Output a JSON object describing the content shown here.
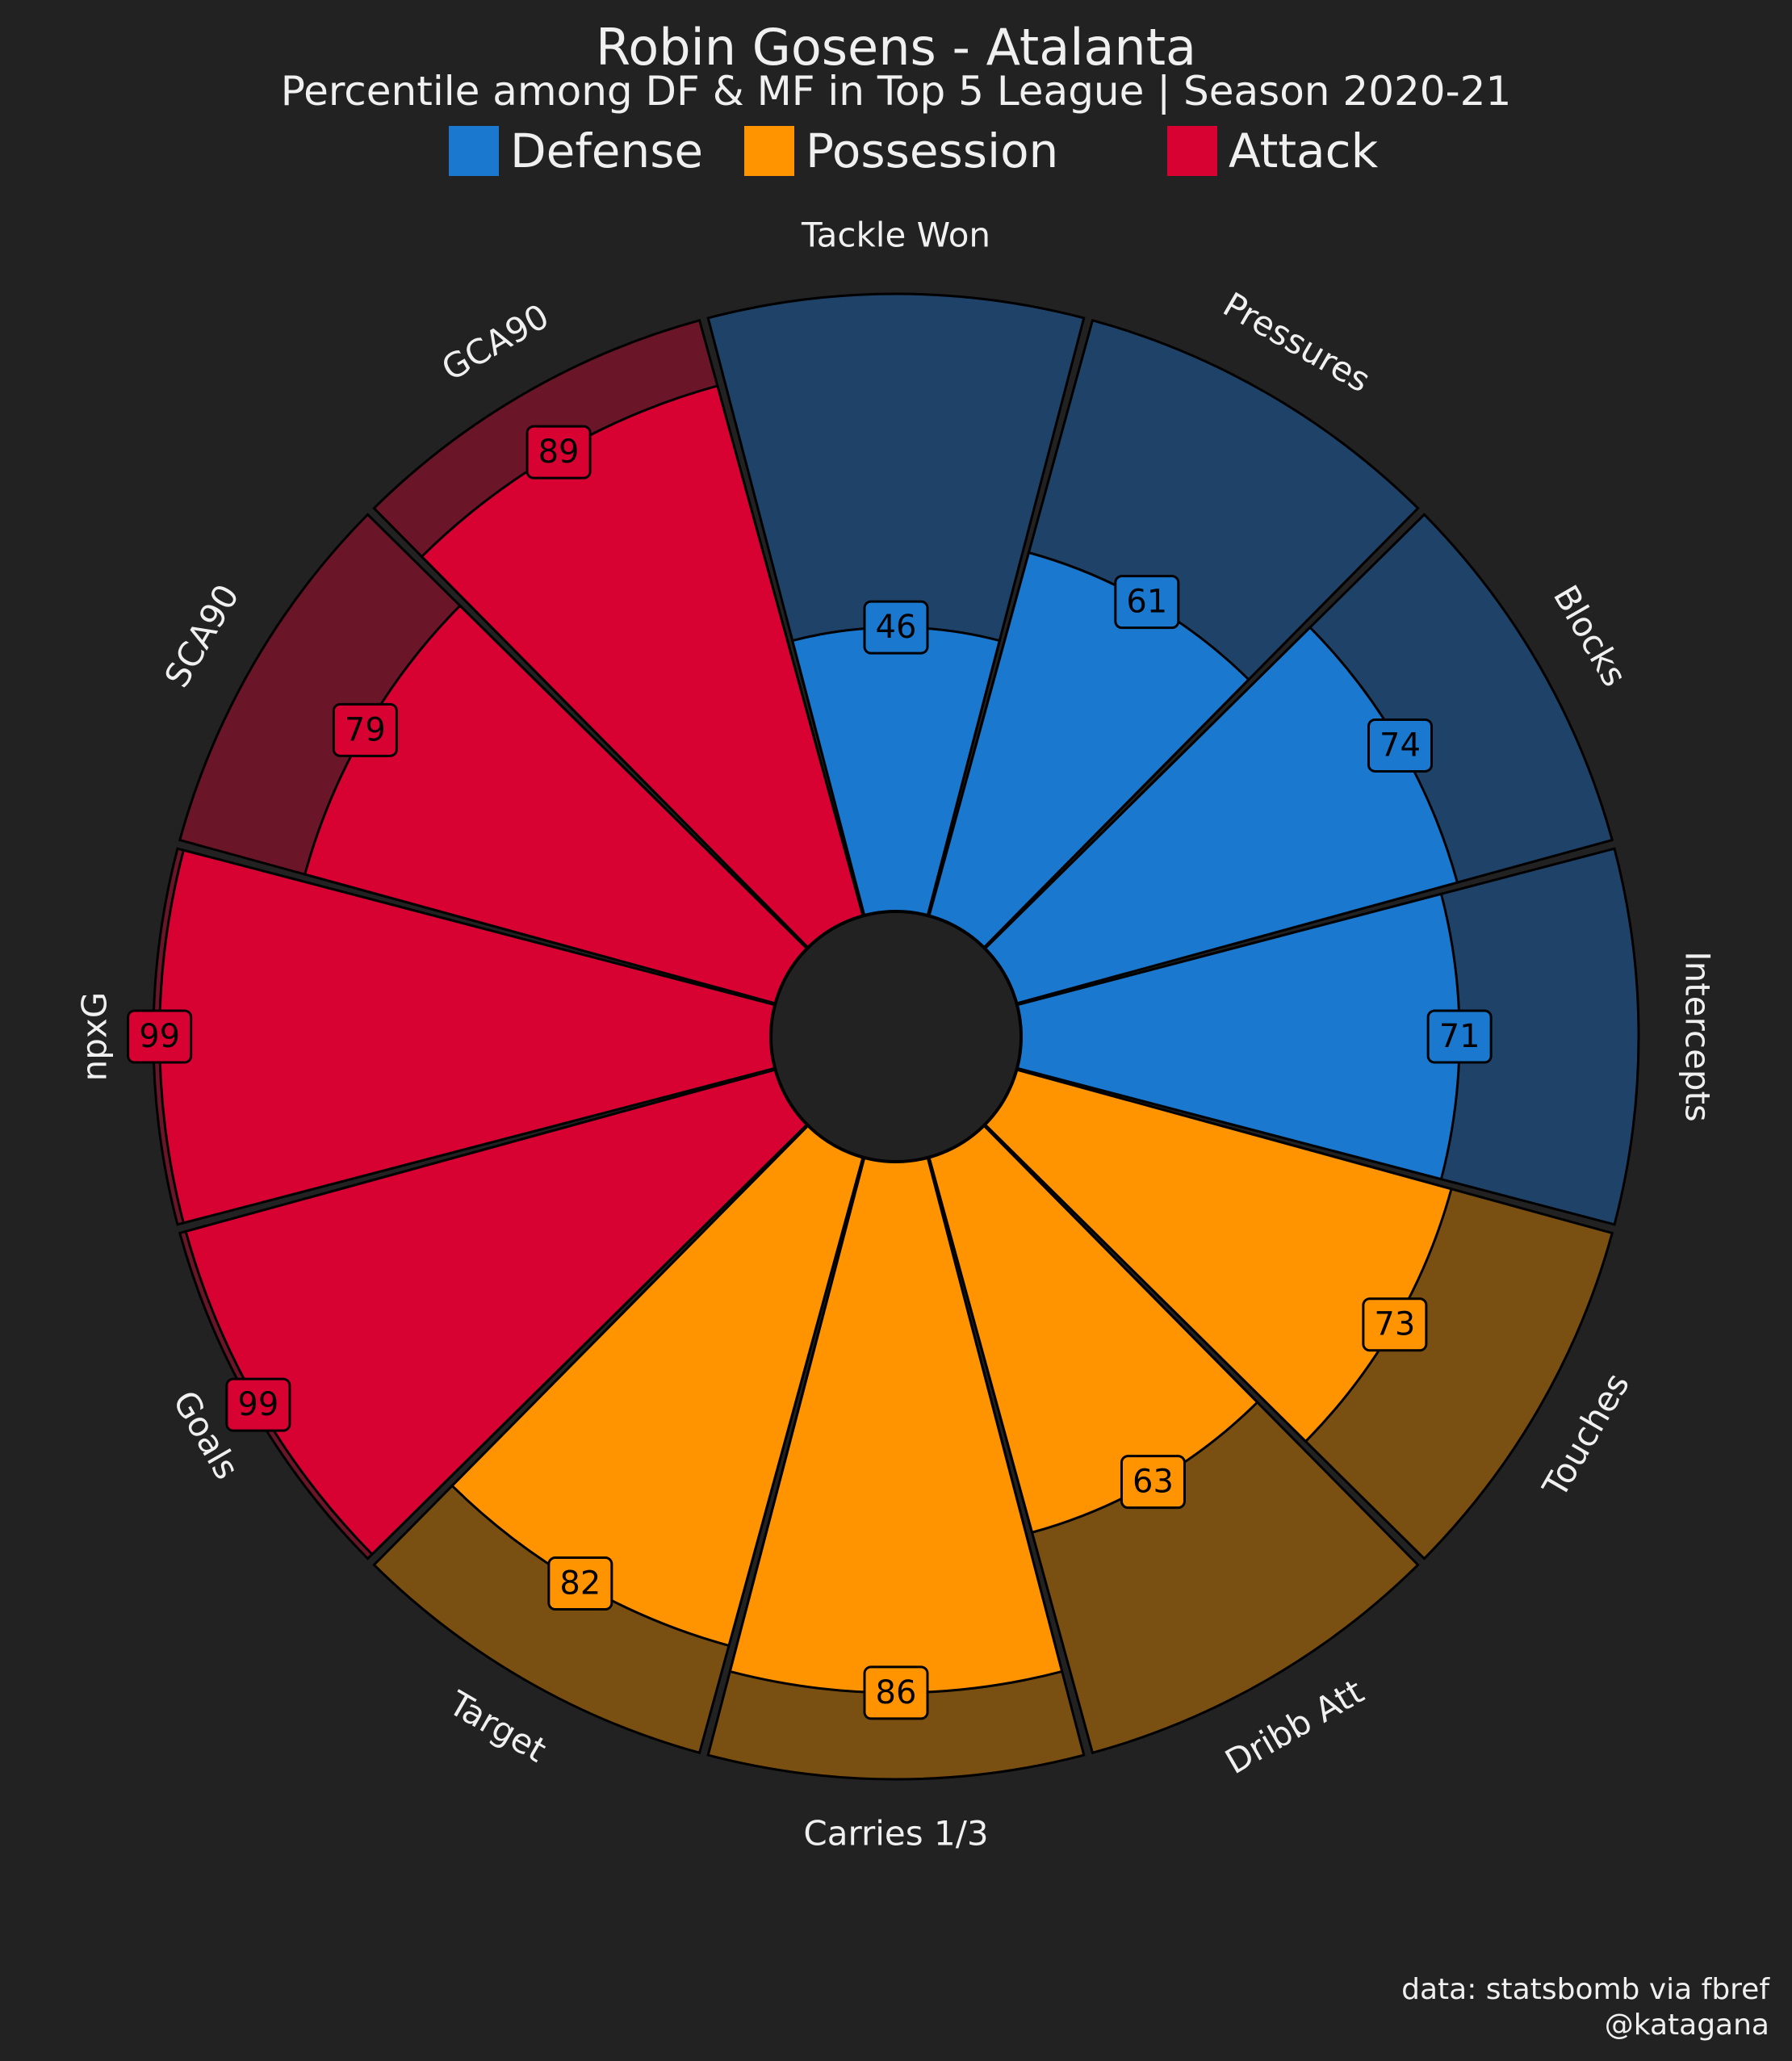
{
  "header": {
    "title": "Robin Gosens - Atalanta",
    "subtitle": "Percentile among DF & MF in Top 5 League | Season 2020-21"
  },
  "legend": [
    {
      "label": "Defense",
      "color": "#1a78cf"
    },
    {
      "label": "Possession",
      "color": "#ff9300"
    },
    {
      "label": "Attack",
      "color": "#d70232"
    }
  ],
  "chart_data": {
    "type": "radial-bar",
    "title": "Robin Gosens - Atalanta",
    "subtitle": "Percentile among DF & MF in Top 5 League | Season 2020-21",
    "range": [
      0,
      100
    ],
    "categories": [
      "Tackle Won",
      "Pressures",
      "Blocks",
      "Intercepts",
      "Touches",
      "Dribb Att",
      "Carries 1/3",
      "Target",
      "Goals",
      "npxG",
      "SCA90",
      "GCA90"
    ],
    "values": [
      46,
      61,
      74,
      71,
      73,
      63,
      86,
      82,
      99,
      99,
      79,
      89
    ],
    "groups": [
      "Defense",
      "Defense",
      "Defense",
      "Defense",
      "Possession",
      "Possession",
      "Possession",
      "Possession",
      "Attack",
      "Attack",
      "Attack",
      "Attack"
    ],
    "colors": {
      "Defense": {
        "bar": "#1a78cf",
        "background": "#1f4368"
      },
      "Possession": {
        "bar": "#ff9300",
        "background": "#7a4f12"
      },
      "Attack": {
        "bar": "#d70232",
        "background": "#6b1628"
      }
    }
  },
  "footer": {
    "credit_line1": "data: statsbomb via fbref",
    "credit_line2": "@katagana"
  }
}
